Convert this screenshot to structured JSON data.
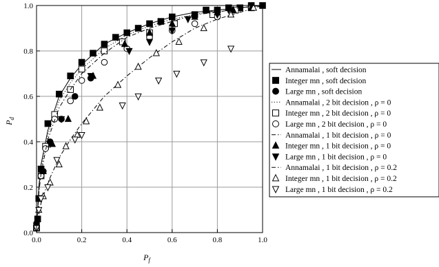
{
  "chart_data": {
    "type": "line",
    "xlabel": "P",
    "xlabel_sub": "f",
    "ylabel": "P",
    "ylabel_sub": "d",
    "xlim": [
      0.0,
      1.0
    ],
    "ylim": [
      0.0,
      1.0
    ],
    "x_ticks": [
      "0.0",
      "0.2",
      "0.4",
      "0.6",
      "0.8",
      "1.0"
    ],
    "y_ticks": [
      "0.0",
      "0.2",
      "0.4",
      "0.6",
      "0.8",
      "1.0"
    ],
    "grid": true,
    "legend_position": "right",
    "series": [
      {
        "name": "Annamalai , soft decision",
        "style": "solid",
        "marker": "none",
        "x": [
          0.0,
          0.01,
          0.02,
          0.05,
          0.1,
          0.15,
          0.2,
          0.3,
          0.4,
          0.5,
          0.6,
          0.7,
          0.8,
          0.9,
          1.0
        ],
        "y": [
          0.0,
          0.2,
          0.3,
          0.45,
          0.6,
          0.68,
          0.74,
          0.83,
          0.88,
          0.92,
          0.95,
          0.97,
          0.98,
          0.99,
          1.0
        ]
      },
      {
        "name": "Integer mn , soft decision",
        "style": "none",
        "marker": "square-filled",
        "x": [
          0.0,
          0.005,
          0.01,
          0.02,
          0.05,
          0.1,
          0.15,
          0.2,
          0.25,
          0.3,
          0.35,
          0.4,
          0.45,
          0.5,
          0.55,
          0.6,
          0.7,
          0.75,
          0.8,
          0.85,
          0.9,
          0.95,
          1.0
        ],
        "y": [
          0.02,
          0.06,
          0.15,
          0.28,
          0.48,
          0.61,
          0.69,
          0.75,
          0.79,
          0.83,
          0.86,
          0.88,
          0.9,
          0.92,
          0.93,
          0.95,
          0.96,
          0.98,
          0.98,
          0.99,
          0.99,
          1.0,
          1.0
        ]
      },
      {
        "name": "Large mn , soft decision",
        "style": "none",
        "marker": "circle-filled",
        "x": [
          0.0,
          0.01,
          0.03,
          0.06,
          0.11,
          0.17,
          0.24
        ],
        "y": [
          0.04,
          0.15,
          0.27,
          0.4,
          0.5,
          0.6,
          0.68
        ]
      },
      {
        "name": "Annamalai , 2 bit decision , ρ = 0",
        "style": "dotted",
        "marker": "none",
        "x": [
          0.0,
          0.01,
          0.02,
          0.05,
          0.1,
          0.15,
          0.2,
          0.3,
          0.4,
          0.5,
          0.6,
          0.7,
          0.8,
          0.9,
          1.0
        ],
        "y": [
          0.0,
          0.19,
          0.28,
          0.43,
          0.58,
          0.66,
          0.72,
          0.81,
          0.87,
          0.91,
          0.94,
          0.96,
          0.98,
          0.99,
          1.0
        ]
      },
      {
        "name": "Integer mn , 2 bit decision , ρ = 0",
        "style": "none",
        "marker": "square-open",
        "x": [
          0.0,
          0.02,
          0.04,
          0.08,
          0.15,
          0.2,
          0.3,
          0.38,
          0.5,
          0.61,
          0.78,
          0.88,
          0.95
        ],
        "y": [
          0.02,
          0.25,
          0.38,
          0.52,
          0.63,
          0.72,
          0.8,
          0.84,
          0.88,
          0.92,
          0.96,
          0.98,
          0.99
        ]
      },
      {
        "name": "Large mn , 2 bit decision , ρ = 0",
        "style": "none",
        "marker": "circle-open",
        "x": [
          0.0,
          0.02,
          0.04,
          0.08,
          0.15,
          0.2,
          0.3,
          0.4,
          0.5,
          0.6,
          0.7,
          0.8,
          0.95
        ],
        "y": [
          0.02,
          0.25,
          0.37,
          0.5,
          0.58,
          0.67,
          0.75,
          0.81,
          0.86,
          0.89,
          0.92,
          0.95,
          0.99
        ]
      },
      {
        "name": "Annamalai , 1 bit decision , ρ = 0",
        "style": "dashdot",
        "marker": "none",
        "x": [
          0.0,
          0.01,
          0.02,
          0.05,
          0.1,
          0.15,
          0.2,
          0.3,
          0.4,
          0.5,
          0.6,
          0.7,
          0.8,
          0.9,
          1.0
        ],
        "y": [
          0.0,
          0.17,
          0.26,
          0.41,
          0.55,
          0.63,
          0.7,
          0.79,
          0.86,
          0.9,
          0.93,
          0.96,
          0.97,
          0.99,
          1.0
        ]
      },
      {
        "name": "Integer mn , 1 bit decision , ρ = 0",
        "style": "none",
        "marker": "triangle-up-filled",
        "x": [
          0.0,
          0.03,
          0.07,
          0.14,
          0.25,
          0.39,
          0.5,
          0.6,
          0.7,
          0.8,
          0.87,
          0.95
        ],
        "y": [
          0.02,
          0.27,
          0.39,
          0.5,
          0.69,
          0.83,
          0.88,
          0.92,
          0.95,
          0.97,
          0.98,
          0.99
        ]
      },
      {
        "name": "Large mn , 1 bit decision , ρ = 0",
        "style": "none",
        "marker": "triangle-down-filled",
        "x": [
          0.0,
          0.02,
          0.06,
          0.11,
          0.24,
          0.41,
          0.5,
          0.6,
          0.67,
          0.8,
          0.85,
          0.9
        ],
        "y": [
          0.02,
          0.28,
          0.39,
          0.5,
          0.69,
          0.8,
          0.84,
          0.89,
          0.94,
          0.96,
          0.98,
          0.99
        ]
      },
      {
        "name": "Annamalai , 1 bit decision , ρ = 0.2",
        "style": "dashdot",
        "marker": "none",
        "x": [
          0.0,
          0.01,
          0.02,
          0.05,
          0.1,
          0.15,
          0.2,
          0.3,
          0.4,
          0.5,
          0.6,
          0.7,
          0.8,
          0.9,
          1.0
        ],
        "y": [
          0.0,
          0.08,
          0.13,
          0.22,
          0.33,
          0.41,
          0.48,
          0.6,
          0.69,
          0.77,
          0.84,
          0.9,
          0.94,
          0.97,
          1.0
        ]
      },
      {
        "name": "Integer mn , 1 bit decision , ρ = 0.2",
        "style": "none",
        "marker": "triangle-up-open",
        "x": [
          0.0,
          0.01,
          0.03,
          0.06,
          0.1,
          0.13,
          0.18,
          0.22,
          0.28,
          0.36,
          0.45,
          0.53,
          0.63,
          0.74,
          0.86,
          0.96
        ],
        "y": [
          0.02,
          0.1,
          0.16,
          0.22,
          0.3,
          0.38,
          0.43,
          0.49,
          0.55,
          0.65,
          0.73,
          0.79,
          0.84,
          0.9,
          0.96,
          0.99
        ]
      },
      {
        "name": "Large mn , 1 bit decision , ρ = 0.2",
        "style": "none",
        "marker": "triangle-down-open",
        "x": [
          0.0,
          0.01,
          0.02,
          0.05,
          0.09,
          0.17,
          0.2,
          0.38,
          0.45,
          0.54,
          0.62,
          0.74,
          0.86
        ],
        "y": [
          0.02,
          0.1,
          0.15,
          0.2,
          0.32,
          0.41,
          0.43,
          0.56,
          0.6,
          0.67,
          0.7,
          0.75,
          0.81
        ]
      }
    ]
  }
}
